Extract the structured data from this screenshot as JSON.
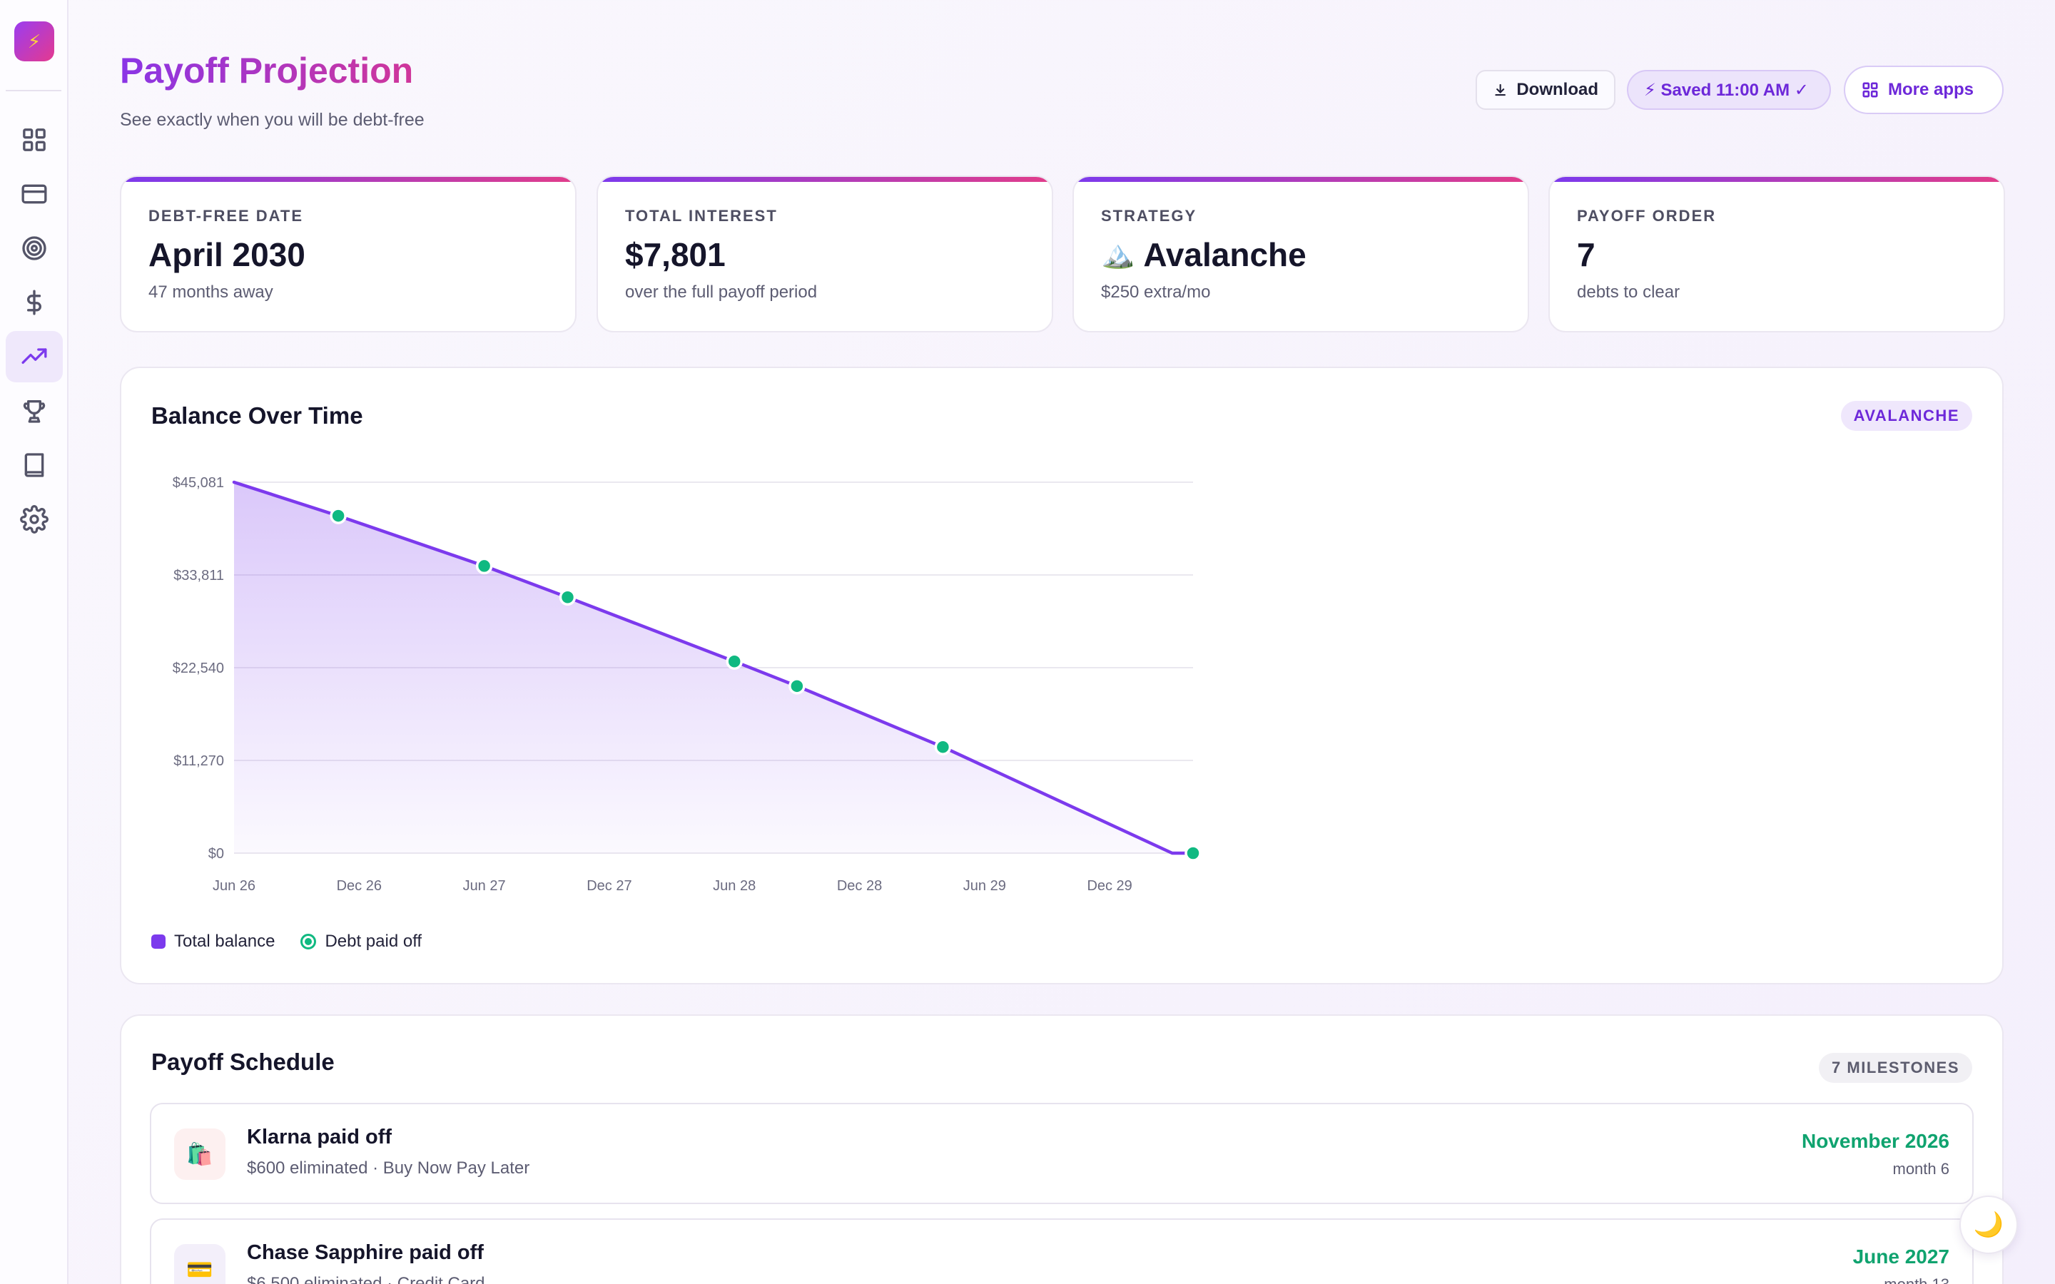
{
  "header": {
    "title": "Payoff Projection",
    "subtitle": "See exactly when you will be debt-free",
    "download_label": "Download",
    "saved_label": "⚡ Saved 11:00 AM ✓",
    "more_apps_label": "More apps"
  },
  "sidebar": {
    "logo_icon": "⚡",
    "items": [
      {
        "icon": "grid-icon",
        "active": false
      },
      {
        "icon": "credit-card-icon",
        "active": false
      },
      {
        "icon": "target-icon",
        "active": false
      },
      {
        "icon": "dollar-icon",
        "active": false
      },
      {
        "icon": "trending-up-icon",
        "active": true
      },
      {
        "icon": "trophy-icon",
        "active": false
      },
      {
        "icon": "book-icon",
        "active": false
      },
      {
        "icon": "gear-icon",
        "active": false
      }
    ]
  },
  "stats": [
    {
      "label": "DEBT-FREE DATE",
      "value": "April 2030",
      "sub": "47 months away"
    },
    {
      "label": "TOTAL INTEREST",
      "value": "$7,801",
      "sub": "over the full payoff period"
    },
    {
      "label": "STRATEGY",
      "icon": "🏔️",
      "value": "Avalanche",
      "sub": "$250 extra/mo"
    },
    {
      "label": "PAYOFF ORDER",
      "value": "7",
      "sub": "debts to clear"
    }
  ],
  "chart_panel": {
    "title": "Balance Over Time",
    "badge": "AVALANCHE",
    "legend": {
      "balance": "Total balance",
      "paid": "Debt paid off"
    }
  },
  "chart_data": {
    "type": "area",
    "y_ticks": [
      "$45,081",
      "$33,811",
      "$22,540",
      "$11,270",
      "$0"
    ],
    "ylim": [
      0,
      45081
    ],
    "x_ticks": [
      "Jun 26",
      "Dec 26",
      "Jun 27",
      "Dec 27",
      "Jun 28",
      "Dec 28",
      "Jun 29",
      "Dec 29"
    ],
    "x_range_months": [
      0,
      46
    ],
    "series": [
      {
        "months": [
          0,
          5,
          12,
          16,
          24,
          27,
          34,
          45,
          46
        ],
        "values": [
          45081,
          41000,
          34900,
          31100,
          23300,
          20300,
          12900,
          0,
          0
        ]
      }
    ],
    "milestones": [
      {
        "month": 5,
        "value": 41000
      },
      {
        "month": 12,
        "value": 34900
      },
      {
        "month": 16,
        "value": 31100
      },
      {
        "month": 24,
        "value": 23300
      },
      {
        "month": 27,
        "value": 20300
      },
      {
        "month": 34,
        "value": 12900
      },
      {
        "month": 46,
        "value": 0
      }
    ],
    "colors": {
      "line": "#7c3aed",
      "area": "#7c3aed",
      "milestone": "#10b981",
      "grid": "#e4e1ea",
      "tick": "#6b6b80"
    },
    "grid": true
  },
  "schedule": {
    "title": "Payoff Schedule",
    "badge": "7 MILESTONES",
    "rows": [
      {
        "icon": "🛍️",
        "icon_bg": "#fdf0f0",
        "title": "Klarna paid off",
        "sub": "$600 eliminated · Buy Now Pay Later",
        "date": "November 2026",
        "month": "month 6"
      },
      {
        "icon": "💳",
        "icon_bg": "#f3effa",
        "title": "Chase Sapphire paid off",
        "sub": "$6,500 eliminated · Credit Card",
        "date": "June 2027",
        "month": "month 13"
      }
    ]
  },
  "theme_toggle": {
    "icon": "🌙"
  }
}
